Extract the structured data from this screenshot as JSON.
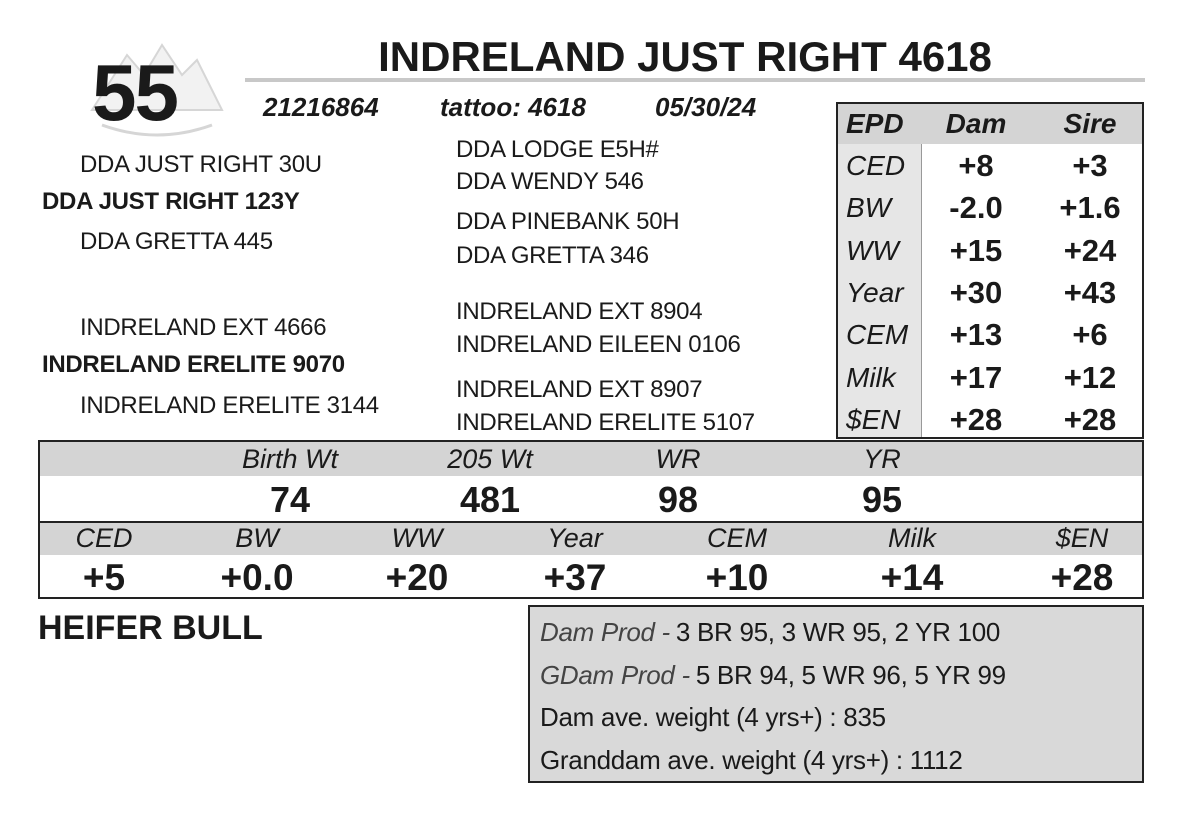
{
  "lot": "55",
  "name": "INDRELAND JUST RIGHT 4618",
  "registration": "21216864",
  "tattoo": "tattoo: 4618",
  "birth_date": "05/30/24",
  "pedigree": {
    "sire": "DDA JUST RIGHT 123Y",
    "sire_parents": [
      "DDA JUST RIGHT 30U",
      "DDA GRETTA 445"
    ],
    "sire_grandparents": [
      "DDA LODGE E5H#",
      "DDA WENDY 546",
      "DDA PINEBANK 50H",
      "DDA GRETTA 346"
    ],
    "dam": "INDRELAND ERELITE 9070",
    "dam_parents": [
      "INDRELAND EXT 4666",
      "INDRELAND ERELITE 3144"
    ],
    "dam_grandparents": [
      "INDRELAND EXT 8904",
      "INDRELAND EILEEN 0106",
      "INDRELAND EXT 8907",
      "INDRELAND ERELITE 5107"
    ]
  },
  "epd_table": {
    "header": [
      "EPD",
      "Dam",
      "Sire"
    ],
    "rows": [
      [
        "CED",
        "+8",
        "+3"
      ],
      [
        "BW",
        "-2.0",
        "+1.6"
      ],
      [
        "WW",
        "+15",
        "+24"
      ],
      [
        "Year",
        "+30",
        "+43"
      ],
      [
        "CEM",
        "+13",
        "+6"
      ],
      [
        "Milk",
        "+17",
        "+12"
      ],
      [
        "$EN",
        "+28",
        "+28"
      ]
    ]
  },
  "performance": {
    "headers": [
      "Birth Wt",
      "205 Wt",
      "WR",
      "YR"
    ],
    "values": [
      74,
      481,
      98,
      95
    ]
  },
  "epds": {
    "headers": [
      "CED",
      "BW",
      "WW",
      "Year",
      "CEM",
      "Milk",
      "$EN"
    ],
    "values": [
      "+5",
      "+0.0",
      "+20",
      "+37",
      "+10",
      "+14",
      "+28"
    ]
  },
  "note": "HEIFER BULL",
  "production": [
    {
      "label": "Dam Prod -",
      "text": "3 BR 95, 3 WR 95, 2 YR 100"
    },
    {
      "label": "GDam Prod -",
      "text": "5 BR 94, 5 WR 96, 5 YR 99"
    },
    {
      "text": "Dam ave. weight (4 yrs+) : 835"
    },
    {
      "text": "Granddam ave. weight (4 yrs+) : 1112"
    }
  ]
}
